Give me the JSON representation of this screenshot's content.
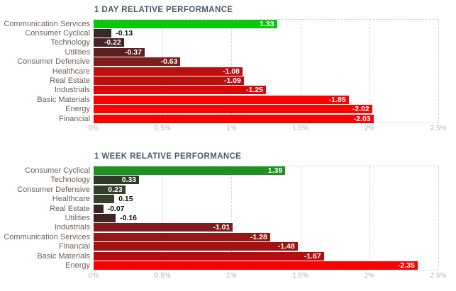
{
  "page": {
    "background": "#ffffff",
    "grid_color": "#d4d4d4",
    "label_color": "#6f6259",
    "title_color": "#4b5a68",
    "tick_color": "#b5b5b5"
  },
  "chart_data": [
    {
      "type": "bar",
      "orientation": "horizontal",
      "title": "1 DAY RELATIVE PERFORMANCE",
      "xlim": [
        0,
        2.5
      ],
      "tick_labels": [
        "0%",
        "0.5%",
        "1%",
        "1.5%",
        "2%",
        "2.5%"
      ],
      "grid": "dashed-vertical",
      "legend": "none",
      "categories": [
        "Communication Services",
        "Consumer Cyclical",
        "Technology",
        "Utilities",
        "Consumer Defensive",
        "Healthcare",
        "Real Estate",
        "Industrials",
        "Basic Materials",
        "Energy",
        "Financial"
      ],
      "values": [
        1.33,
        -0.13,
        -0.22,
        -0.37,
        -0.63,
        -1.08,
        -1.09,
        -1.25,
        -1.85,
        -2.02,
        -2.03
      ],
      "value_labels": [
        "1.33",
        "-0.13",
        "-0.22",
        "-0.37",
        "-0.63",
        "-1.08",
        "-1.09",
        "-1.25",
        "-1.85",
        "-2.02",
        "-2.03"
      ],
      "bar_colors": [
        "#0cc60c",
        "#3b2929",
        "#482424",
        "#5c2020",
        "#7e1d1d",
        "#bb0e0e",
        "#bd0e0e",
        "#d90808",
        "#fb0202",
        "#fd0000",
        "#fe0000"
      ]
    },
    {
      "type": "bar",
      "orientation": "horizontal",
      "title": "1 WEEK RELATIVE PERFORMANCE",
      "xlim": [
        0,
        2.5
      ],
      "tick_labels": [
        "0%",
        "0.5%",
        "1%",
        "1.5%",
        "2%",
        "2.5%"
      ],
      "grid": "dashed-vertical",
      "legend": "none",
      "categories": [
        "Consumer Cyclical",
        "Technology",
        "Consumer Defensive",
        "Healthcare",
        "Real Estate",
        "Utilities",
        "Industrials",
        "Communication Services",
        "Financial",
        "Basic Materials",
        "Energy"
      ],
      "values": [
        1.39,
        0.33,
        0.23,
        0.15,
        -0.07,
        -0.16,
        -1.01,
        -1.28,
        -1.48,
        -1.67,
        -2.35
      ],
      "value_labels": [
        "1.39",
        "0.33",
        "0.23",
        "0.15",
        "-0.07",
        "-0.16",
        "-1.01",
        "-1.28",
        "-1.48",
        "-1.67",
        "-2.35"
      ],
      "bar_colors": [
        "#1e9120",
        "#2e3b26",
        "#314027",
        "#36402d",
        "#3a2626",
        "#402323",
        "#801c1c",
        "#971717",
        "#a31313",
        "#b30e0e",
        "#f60404"
      ]
    }
  ]
}
